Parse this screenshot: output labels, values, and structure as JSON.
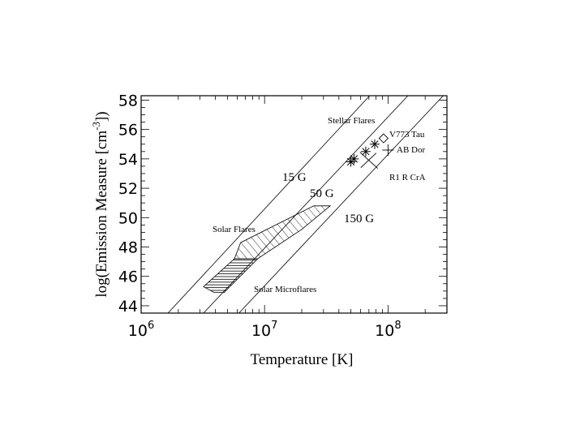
{
  "chart_data": {
    "type": "scatter",
    "xlabel": "Temperature  [K]",
    "ylabel": {
      "main": "log(Emission Measure  [cm",
      "exponent": "-3",
      "close": "])"
    },
    "x_scale": "log",
    "xlim": [
      1000000,
      300000000
    ],
    "ylim": [
      43.5,
      58.3
    ],
    "x_ticks": [
      {
        "value": 1000000,
        "base": "10",
        "exp": "6"
      },
      {
        "value": 10000000,
        "base": "10",
        "exp": "7"
      },
      {
        "value": 100000000,
        "base": "10",
        "exp": "8"
      }
    ],
    "y_ticks": [
      44,
      46,
      48,
      50,
      52,
      54,
      56,
      58
    ],
    "field_lines": [
      {
        "label": "15 G",
        "T1": 1650000,
        "EM1": 43.5,
        "T2": 71000000,
        "EM2": 58.3
      },
      {
        "label": "50 G",
        "T1": 3200000,
        "EM1": 43.5,
        "T2": 145000000,
        "EM2": 58.3
      },
      {
        "label": "150 G",
        "T1": 6200000,
        "EM1": 43.5,
        "T2": 280000000,
        "EM2": 58.3
      }
    ],
    "regions": [
      {
        "label": "Solar Flares",
        "points": [
          [
            5700000,
            47.2
          ],
          [
            6400000,
            48.3
          ],
          [
            25000000,
            50.8
          ],
          [
            34000000,
            50.8
          ],
          [
            20000000,
            49.2
          ],
          [
            8800000,
            47.2
          ]
        ]
      },
      {
        "label": "Solar Microflares",
        "points": [
          [
            3200000,
            45.3
          ],
          [
            5700000,
            47.2
          ],
          [
            8800000,
            47.2
          ],
          [
            4700000,
            44.9
          ],
          [
            3900000,
            44.9
          ]
        ]
      }
    ],
    "stars": [
      {
        "label": "V773 Tau",
        "T": 92000000,
        "EM": 55.4,
        "marker": "diamond"
      },
      {
        "label": "AB Dor",
        "T": 100000000,
        "EM": 54.6,
        "marker": "plus"
      },
      {
        "label": "R1 R CrA",
        "T": 70000000,
        "EM": 53.9,
        "marker": "x-cross"
      }
    ],
    "stellar_flares_points": [
      {
        "T": 50000000,
        "EM": 53.8
      },
      {
        "T": 53000000,
        "EM": 54.0
      },
      {
        "T": 66000000,
        "EM": 54.5
      },
      {
        "T": 78000000,
        "EM": 55.0
      }
    ],
    "stellar_flares_label": "Stellar Flares"
  }
}
